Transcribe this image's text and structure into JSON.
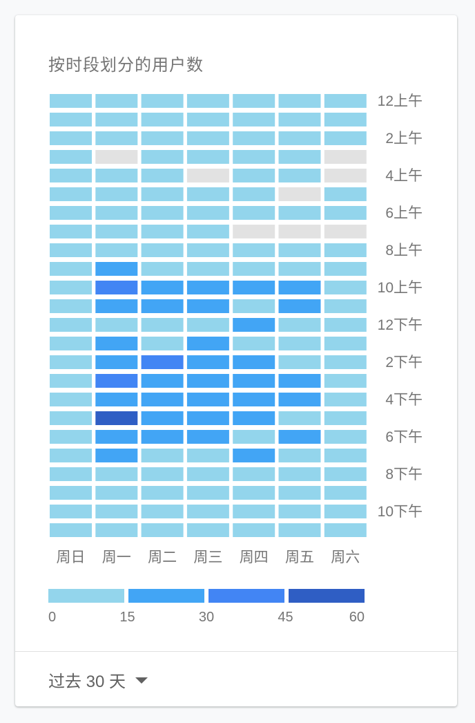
{
  "title": "按时段划分的用户数",
  "footer": {
    "range_label": "过去 30 天"
  },
  "chart_data": {
    "type": "heatmap",
    "title": "按时段划分的用户数",
    "days": [
      "周日",
      "周一",
      "周二",
      "周三",
      "周四",
      "周五",
      "周六"
    ],
    "hours": [
      "12上午",
      "1上午",
      "2上午",
      "3上午",
      "4上午",
      "5上午",
      "6上午",
      "7上午",
      "8上午",
      "9上午",
      "10上午",
      "11上午",
      "12下午",
      "1下午",
      "2下午",
      "3下午",
      "4下午",
      "5下午",
      "6下午",
      "7下午",
      "8下午",
      "9下午",
      "10下午",
      "11下午"
    ],
    "hour_labels_shown": [
      "12上午",
      "2上午",
      "4上午",
      "6上午",
      "8上午",
      "10上午",
      "12下午",
      "2下午",
      "4下午",
      "6下午",
      "8下午",
      "10下午"
    ],
    "values": [
      [
        6,
        6,
        6,
        6,
        6,
        6,
        6
      ],
      [
        6,
        6,
        6,
        6,
        6,
        6,
        6
      ],
      [
        6,
        6,
        6,
        6,
        6,
        6,
        6
      ],
      [
        6,
        0,
        6,
        6,
        6,
        6,
        0
      ],
      [
        6,
        6,
        6,
        0,
        6,
        6,
        0
      ],
      [
        6,
        6,
        6,
        6,
        6,
        0,
        6
      ],
      [
        6,
        6,
        6,
        6,
        6,
        6,
        6
      ],
      [
        6,
        6,
        6,
        6,
        0,
        0,
        0
      ],
      [
        6,
        6,
        6,
        6,
        6,
        6,
        6
      ],
      [
        6,
        22,
        6,
        6,
        6,
        6,
        6
      ],
      [
        6,
        38,
        22,
        22,
        22,
        22,
        6
      ],
      [
        6,
        22,
        22,
        22,
        6,
        22,
        6
      ],
      [
        6,
        6,
        6,
        6,
        22,
        6,
        6
      ],
      [
        6,
        22,
        6,
        22,
        6,
        6,
        6
      ],
      [
        6,
        22,
        38,
        22,
        22,
        6,
        6
      ],
      [
        6,
        38,
        22,
        22,
        22,
        22,
        6
      ],
      [
        6,
        22,
        22,
        22,
        22,
        22,
        6
      ],
      [
        6,
        52,
        22,
        22,
        22,
        6,
        6
      ],
      [
        6,
        22,
        22,
        22,
        6,
        22,
        6
      ],
      [
        6,
        22,
        6,
        6,
        22,
        6,
        6
      ],
      [
        6,
        6,
        6,
        6,
        6,
        6,
        6
      ],
      [
        6,
        6,
        6,
        6,
        6,
        6,
        6
      ],
      [
        6,
        6,
        6,
        6,
        6,
        6,
        6
      ],
      [
        6,
        6,
        6,
        6,
        6,
        6,
        6
      ]
    ],
    "legend": {
      "ticks": [
        "0",
        "15",
        "30",
        "45",
        "60"
      ],
      "colors": [
        "#93d5ec",
        "#42a5f5",
        "#4285f4",
        "#2f5ec4"
      ]
    },
    "empty_color": "#e2e2e2",
    "vmin": 0,
    "vmax": 60
  }
}
